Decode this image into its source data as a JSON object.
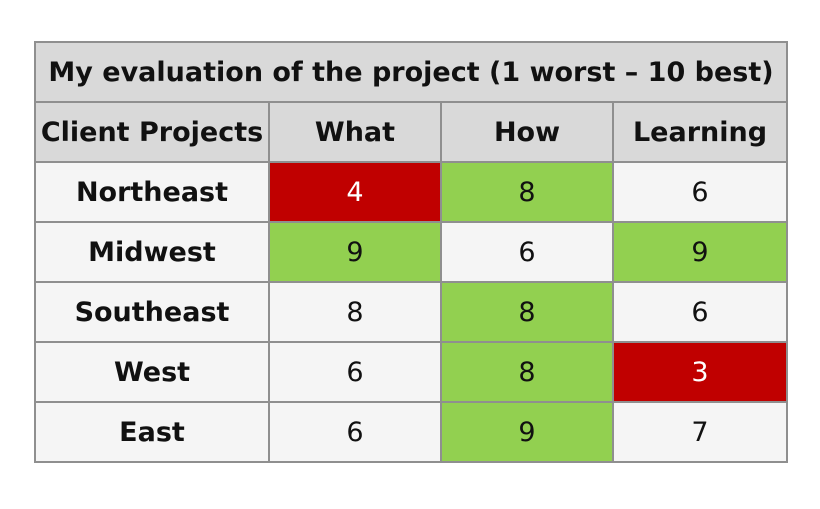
{
  "chart_data": {
    "type": "table",
    "title": "My evaluation of the project (1 worst – 10 best)",
    "columns": [
      "Client Projects",
      "What",
      "How",
      "Learning"
    ],
    "rows": [
      {
        "label": "Northeast",
        "values": [
          4,
          8,
          6
        ]
      },
      {
        "label": "Midwest",
        "values": [
          9,
          6,
          9
        ]
      },
      {
        "label": "Southeast",
        "values": [
          8,
          8,
          6
        ]
      },
      {
        "label": "West",
        "values": [
          6,
          8,
          3
        ]
      },
      {
        "label": "East",
        "values": [
          6,
          9,
          7
        ]
      }
    ],
    "cell_highlight": [
      [
        "bad",
        "good",
        "none"
      ],
      [
        "good",
        "none",
        "good"
      ],
      [
        "none",
        "good",
        "none"
      ],
      [
        "none",
        "good",
        "bad"
      ],
      [
        "none",
        "good",
        "none"
      ]
    ],
    "colors": {
      "good": "#92d050",
      "bad": "#c00000",
      "header_bg": "#d9d9d9",
      "cell_bg": "#f5f5f5",
      "border": "#8f8f8f"
    }
  }
}
